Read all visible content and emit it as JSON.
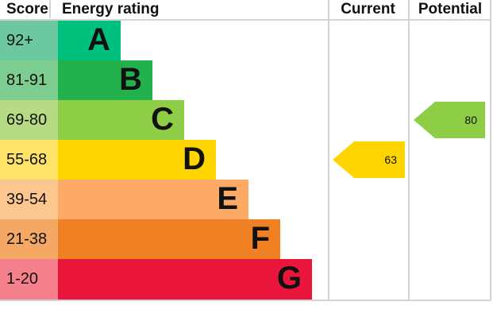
{
  "header": {
    "score": "Score",
    "energy_rating": "Energy rating",
    "current": "Current",
    "potential": "Potential"
  },
  "bands": [
    {
      "score": "92+",
      "letter": "A",
      "color": "#00c07d",
      "score_bg": "#6cc8a1"
    },
    {
      "score": "81-91",
      "letter": "B",
      "color": "#22b14c",
      "score_bg": "#7ecd90"
    },
    {
      "score": "69-80",
      "letter": "C",
      "color": "#8dce46",
      "score_bg": "#b6db84"
    },
    {
      "score": "55-68",
      "letter": "D",
      "color": "#ffd500",
      "score_bg": "#fde468"
    },
    {
      "score": "39-54",
      "letter": "E",
      "color": "#fcaa65",
      "score_bg": "#fcc68f"
    },
    {
      "score": "21-38",
      "letter": "F",
      "color": "#ef8023",
      "score_bg": "#f5a864"
    },
    {
      "score": "1-20",
      "letter": "G",
      "color": "#e9153b",
      "score_bg": "#f4808c"
    }
  ],
  "markers": {
    "current": {
      "value": "63",
      "band": "D",
      "color": "#ffd500"
    },
    "potential": {
      "value": "80",
      "band": "C",
      "color": "#8dce46"
    }
  },
  "border_color": "#d4d4d4",
  "chart_data": {
    "type": "bar",
    "orientation": "horizontal",
    "title": "Energy rating",
    "categories": [
      "A",
      "B",
      "C",
      "D",
      "E",
      "F",
      "G"
    ],
    "score_ranges": [
      "92+",
      "81-91",
      "69-80",
      "55-68",
      "39-54",
      "21-38",
      "1-20"
    ],
    "values": [
      1,
      2,
      3,
      4,
      5,
      6,
      7
    ],
    "band_colors": [
      "#00c07d",
      "#22b14c",
      "#8dce46",
      "#ffd500",
      "#fcaa65",
      "#ef8023",
      "#e9153b"
    ],
    "markers": [
      {
        "label": "Current",
        "value": 63,
        "band": "D",
        "color": "#ffd500"
      },
      {
        "label": "Potential",
        "value": 80,
        "band": "C",
        "color": "#8dce46"
      }
    ],
    "legend": "none",
    "grid": false
  }
}
